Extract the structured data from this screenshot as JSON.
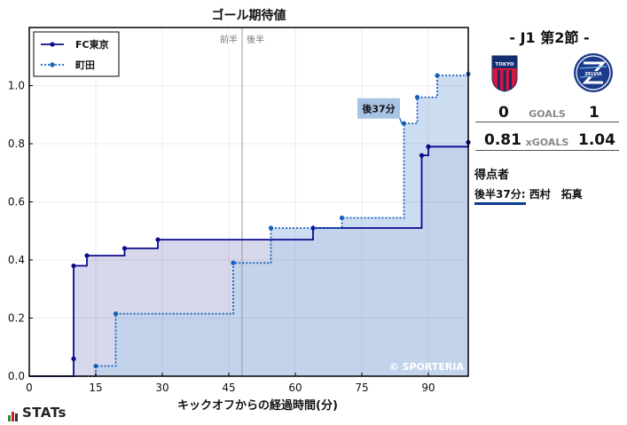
{
  "chart_data": {
    "type": "line",
    "title": "ゴール期待値",
    "xlabel": "キックオフからの経過時間(分)",
    "ylabel": "",
    "xlim": [
      0,
      99
    ],
    "ylim": [
      0,
      1.2
    ],
    "x_ticks": [
      0,
      15,
      30,
      45,
      60,
      75,
      90
    ],
    "y_ticks": [
      0.0,
      0.2,
      0.4,
      0.6,
      0.8,
      1.0
    ],
    "y_tick_labels": [
      "0.0",
      "0.2",
      "0.4",
      "0.6",
      "0.8",
      "1.0"
    ],
    "grid": true,
    "legend_position": "top-left",
    "halftime_marker": {
      "x": 48,
      "label_left": "前半",
      "label_right": "後半"
    },
    "series": [
      {
        "name": "FC東京",
        "line_style": "solid",
        "line_color": "#0a0a8c",
        "fill_color": "#c9cbe6",
        "x": [
          0,
          10,
          10,
          13,
          21.5,
          29,
          64,
          88.5,
          90,
          99
        ],
        "y": [
          0,
          0.06,
          0.38,
          0.415,
          0.44,
          0.47,
          0.51,
          0.76,
          0.79,
          0.805
        ]
      },
      {
        "name": "町田",
        "line_style": "dotted",
        "line_color": "#1560bd",
        "fill_color": "#bcd2ec",
        "x": [
          0,
          15,
          19.5,
          46,
          54.5,
          70.5,
          84.5,
          87.5,
          92,
          99
        ],
        "y": [
          0,
          0.035,
          0.215,
          0.39,
          0.51,
          0.545,
          0.87,
          0.96,
          1.035,
          1.04
        ]
      }
    ],
    "annotations": [
      {
        "text": "後37分",
        "x": 84.5,
        "y": 0.87,
        "box_x": 79,
        "box_y": 0.92
      }
    ]
  },
  "watermark": "© SPORTERIA",
  "match": {
    "title": "- J1 第2節 -",
    "home_crest_text": "TOKYO",
    "away_crest_text": "ZELVIA",
    "goals": {
      "home": "0",
      "label": "GOALS",
      "away": "1"
    },
    "xgoals": {
      "home": "0.81",
      "label": "xGOALS",
      "away": "1.04"
    }
  },
  "scorers": {
    "title": "得点者",
    "items": [
      {
        "time": "後半37分:",
        "name": "西村　拓真"
      }
    ]
  },
  "branding": {
    "logo": "STATs"
  },
  "colors": {
    "home_line": "#0a0a8c",
    "away_line": "#1560bd",
    "home_fill": "#c9cbe6",
    "away_fill": "#bcd2ec",
    "overlap_fill": "#a6b3df",
    "underline": "#0a3d8f"
  }
}
